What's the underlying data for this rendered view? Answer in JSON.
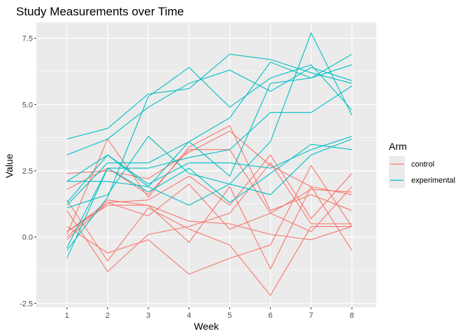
{
  "chart_data": {
    "type": "line",
    "title": "Study Measurements over Time",
    "xlabel": "Week",
    "ylabel": "Value",
    "x": [
      1,
      2,
      3,
      4,
      5,
      6,
      7,
      8
    ],
    "xlim": [
      0.25,
      8.6
    ],
    "ylim": [
      -2.65,
      8.1
    ],
    "yticks": [
      -2.5,
      0.0,
      2.5,
      5.0,
      7.5
    ],
    "ytick_labels": [
      "-2.5",
      "0.0",
      "2.5",
      "5.0",
      "7.5"
    ],
    "grid": true,
    "legend": {
      "title": "Arm",
      "position": "right",
      "entries": [
        {
          "label": "control",
          "color": "#f8766d"
        },
        {
          "label": "experimental",
          "color": "#00bfc4"
        }
      ]
    },
    "groups": [
      {
        "arm": "control",
        "color": "#f8766d",
        "lines": [
          [
            0.2,
            1.2,
            1.2,
            0.6,
            0.5,
            0.1,
            -0.1,
            0.4
          ],
          [
            1.0,
            -1.3,
            0.1,
            0.4,
            0.9,
            2.8,
            0.5,
            0.5
          ],
          [
            0.0,
            1.4,
            1.2,
            -0.2,
            1.9,
            -1.2,
            1.9,
            -0.5
          ],
          [
            0.1,
            3.7,
            1.5,
            3.4,
            4.2,
            1.0,
            1.6,
            1.0
          ],
          [
            1.8,
            2.6,
            1.6,
            3.3,
            3.3,
            0.9,
            1.8,
            1.7
          ],
          [
            0.4,
            -0.6,
            -0.1,
            -1.4,
            -0.8,
            -0.3,
            2.7,
            0.4
          ],
          [
            2.4,
            2.5,
            2.2,
            3.2,
            4.0,
            2.7,
            1.9,
            1.6
          ],
          [
            1.4,
            -0.9,
            1.1,
            0.3,
            -0.3,
            -2.2,
            0.4,
            0.4
          ],
          [
            0.2,
            1.3,
            1.4,
            2.3,
            1.2,
            3.1,
            0.7,
            2.4
          ],
          [
            -0.1,
            1.3,
            0.8,
            2.0,
            0.3,
            0.9,
            0.2,
            1.9
          ]
        ]
      },
      {
        "arm": "experimental",
        "color": "#00bfc4",
        "lines": [
          [
            3.7,
            4.1,
            5.4,
            5.6,
            6.9,
            6.7,
            6.2,
            5.8
          ],
          [
            3.1,
            3.7,
            4.9,
            5.8,
            6.3,
            5.5,
            6.4,
            5.9
          ],
          [
            1.2,
            2.8,
            2.8,
            3.6,
            4.5,
            6.6,
            6.0,
            6.9
          ],
          [
            -0.8,
            2.6,
            1.7,
            2.6,
            1.3,
            2.4,
            3.5,
            3.3
          ],
          [
            2.1,
            2.1,
            1.9,
            1.2,
            2.0,
            1.6,
            3.1,
            3.7
          ],
          [
            -0.4,
            2.6,
            2.6,
            3.0,
            3.3,
            4.7,
            4.7,
            5.7
          ],
          [
            1.3,
            3.1,
            2.0,
            2.8,
            2.8,
            2.6,
            3.3,
            3.8
          ],
          [
            1.1,
            1.6,
            3.8,
            2.4,
            2.0,
            3.6,
            7.7,
            4.6
          ],
          [
            2.1,
            3.1,
            1.9,
            3.6,
            2.3,
            5.8,
            6.0,
            6.5
          ],
          [
            -0.5,
            1.5,
            5.3,
            6.4,
            4.9,
            6.0,
            6.5,
            4.8
          ]
        ]
      }
    ]
  }
}
